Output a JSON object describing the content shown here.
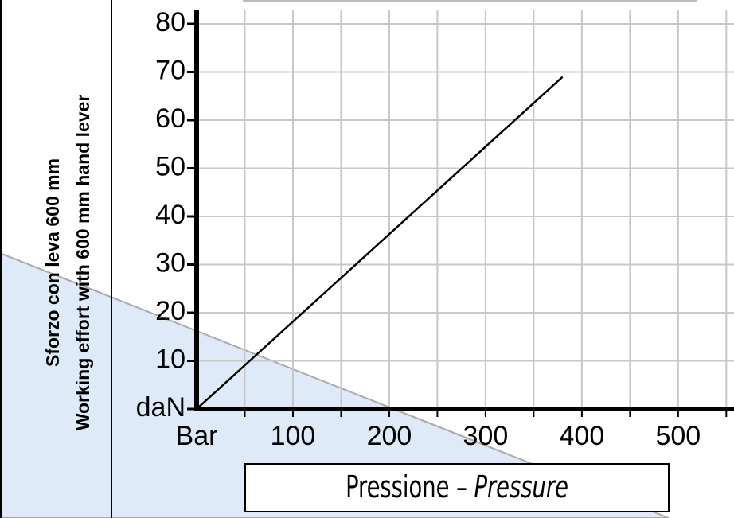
{
  "chart_data": {
    "type": "line",
    "y_label": [
      "Sforzo con leva 600 mm",
      "Working effort with 600 mm hand lever"
    ],
    "x_label": {
      "it": "Pressione –",
      "en": "Pressure"
    },
    "x": [
      0,
      380
    ],
    "values": [
      0,
      69
    ],
    "color": "#000000",
    "xlim": [
      0,
      558
    ],
    "ylim": [
      0,
      80
    ],
    "xticks": [
      {
        "value": 0,
        "label": "Bar"
      },
      100,
      200,
      300,
      400,
      500
    ],
    "yticks": [
      {
        "value": 0,
        "label": "daN"
      },
      10,
      20,
      30,
      40,
      50,
      60,
      70,
      80
    ],
    "xgrid": [
      50,
      100,
      150,
      200,
      250,
      300,
      350,
      400,
      450,
      500,
      550
    ],
    "grid": true
  }
}
